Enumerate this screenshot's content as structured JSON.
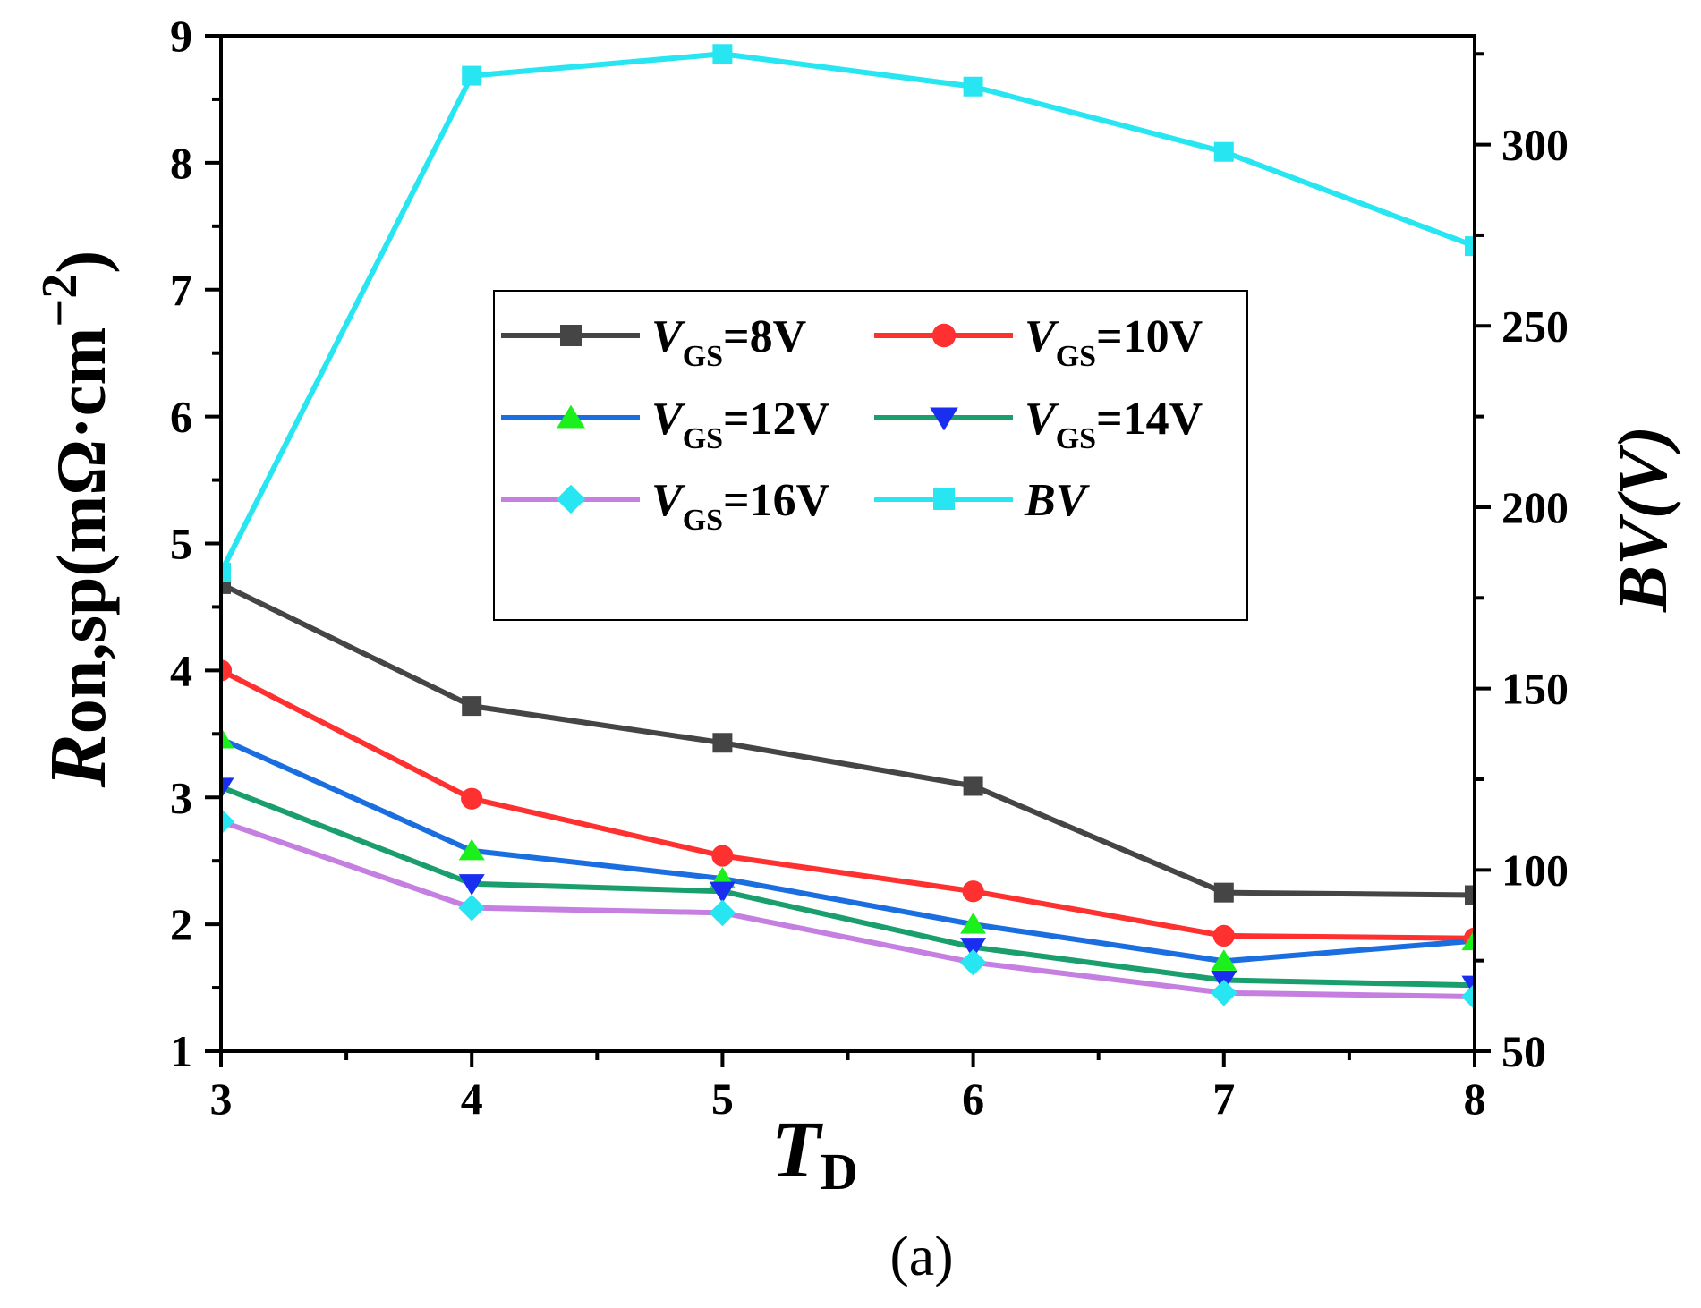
{
  "chart_data": {
    "type": "line",
    "caption": "(a)",
    "x": [
      3,
      4,
      5,
      6,
      7,
      8
    ],
    "xlim": [
      3,
      8
    ],
    "x_ticks": [
      "3",
      "4",
      "5",
      "6",
      "7",
      "8"
    ],
    "xlabel": {
      "main": "T",
      "sub": "D"
    },
    "y_left": {
      "label_main": "R",
      "label_rest": "on,sp(mΩ·cm",
      "label_sup": "−2",
      "label_close": ")",
      "lim": [
        1,
        9
      ],
      "ticks": [
        "1",
        "2",
        "3",
        "4",
        "5",
        "6",
        "7",
        "8",
        "9"
      ]
    },
    "y_right": {
      "label": "BV(V)",
      "lim": [
        50,
        330
      ],
      "ticks": [
        "50",
        "100",
        "150",
        "200",
        "250",
        "300"
      ]
    },
    "series": [
      {
        "name": "VGS=8V",
        "legend_main": "V",
        "legend_sub": "GS",
        "legend_rest": "=8V",
        "axis": "left",
        "color": "#454545",
        "marker": "square",
        "values": [
          4.68,
          3.72,
          3.43,
          3.09,
          2.25,
          2.23
        ]
      },
      {
        "name": "VGS=10V",
        "legend_main": "V",
        "legend_sub": "GS",
        "legend_rest": "=10V",
        "axis": "left",
        "color": "#ff3030",
        "marker": "circle",
        "values": [
          4.0,
          2.99,
          2.54,
          2.26,
          1.91,
          1.89
        ]
      },
      {
        "name": "VGS=12V",
        "legend_main": "V",
        "legend_sub": "GS",
        "legend_rest": "=12V",
        "axis": "left",
        "color": "#1a6ee0",
        "marker": "triangle-up",
        "marker_color": "#1cf01c",
        "values": [
          3.46,
          2.58,
          2.36,
          2.0,
          1.71,
          1.87
        ]
      },
      {
        "name": "VGS=14V",
        "legend_main": "V",
        "legend_sub": "GS",
        "legend_rest": "=14V",
        "axis": "left",
        "color": "#1a9e6e",
        "marker": "triangle-down",
        "marker_color": "#1a2ef0",
        "values": [
          3.08,
          2.32,
          2.26,
          1.82,
          1.56,
          1.52
        ]
      },
      {
        "name": "VGS=16V",
        "legend_main": "V",
        "legend_sub": "GS",
        "legend_rest": "=16V",
        "axis": "left",
        "color": "#c57fe0",
        "marker": "diamond",
        "marker_color": "#27e6f2",
        "values": [
          2.81,
          2.13,
          2.09,
          1.7,
          1.46,
          1.43
        ]
      },
      {
        "name": "BV",
        "legend_main": "BV",
        "legend_sub": "",
        "legend_rest": "",
        "axis": "right",
        "color": "#27e6f2",
        "marker": "square",
        "values": [
          182,
          319,
          325,
          316,
          298,
          272
        ]
      }
    ],
    "legend_position": "center"
  }
}
